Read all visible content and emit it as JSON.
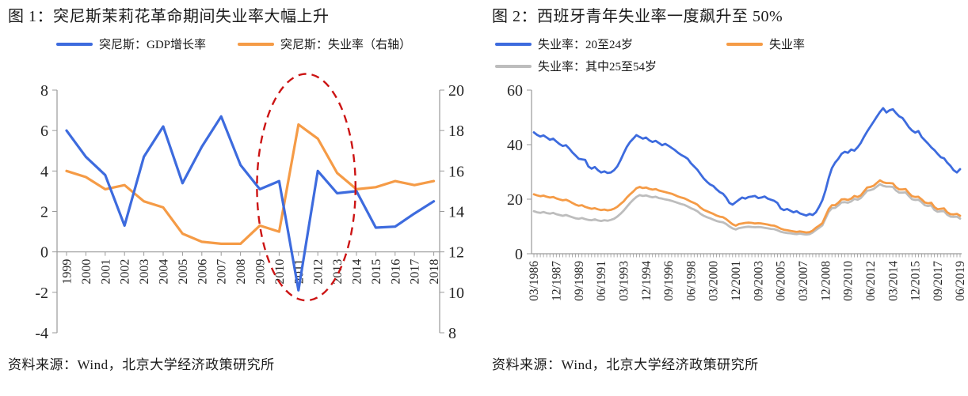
{
  "page": {
    "background": "#ffffff",
    "axis_color": "#9a9a9a",
    "text_color": "#1a1a1a"
  },
  "source_note": "资料来源：Wind，北京大学经济政策研究所",
  "chart_data": [
    {
      "id": "figure1",
      "type": "line",
      "title": "图 1：突尼斯茉莉花革命期间失业率大幅上升",
      "categories": [
        1999,
        2000,
        2001,
        2002,
        2003,
        2004,
        2005,
        2006,
        2007,
        2008,
        2009,
        2010,
        2011,
        2012,
        2013,
        2014,
        2015,
        2016,
        2017,
        2018
      ],
      "series": [
        {
          "name": "突尼斯：GDP增长率",
          "axis": "left",
          "color": "#3D6BDE",
          "values": [
            6.0,
            4.7,
            3.8,
            1.3,
            4.7,
            6.2,
            3.4,
            5.2,
            6.7,
            4.3,
            3.1,
            3.5,
            -1.9,
            4.0,
            2.9,
            3.0,
            1.2,
            1.25,
            1.9,
            2.5
          ]
        },
        {
          "name": "突尼斯：失业率（右轴）",
          "axis": "right",
          "color": "#F59B46",
          "values": [
            16.0,
            15.7,
            15.1,
            15.3,
            14.5,
            14.2,
            12.9,
            12.5,
            12.4,
            12.4,
            13.3,
            13.0,
            18.3,
            17.6,
            15.9,
            15.1,
            15.2,
            15.5,
            15.3,
            15.5
          ]
        }
      ],
      "left_axis": {
        "range": [
          -4,
          8
        ],
        "ticks": [
          8,
          6,
          4,
          2,
          0,
          -2,
          -4
        ]
      },
      "right_axis": {
        "range": [
          8,
          20
        ],
        "ticks": [
          20,
          18,
          16,
          14,
          12,
          10,
          8
        ]
      },
      "grid": false,
      "legend_position": "top",
      "annotation": {
        "shape": "dashed-ellipse",
        "color": "#CC1414",
        "x_center_year": 2011.4,
        "x_radius_years": 2.55,
        "y_center_left_axis": 3.2,
        "y_radius_left_axis": 5.6
      }
    },
    {
      "id": "figure2",
      "type": "line",
      "title": "图 2：西班牙青年失业率一度飙升至 50%",
      "x_frequency": "quarterly",
      "x_start": "1986Q1",
      "x_end": "2019Q2",
      "x_tick_indices": [
        0,
        7,
        14,
        21,
        28,
        35,
        42,
        49,
        56,
        63,
        70,
        77,
        84,
        91,
        98,
        105,
        112,
        119,
        126,
        133
      ],
      "x_tick_labels": [
        "03/1986",
        "12/1987",
        "09/1989",
        "06/1991",
        "03/1993",
        "12/1994",
        "09/1996",
        "06/1998",
        "03/2000",
        "12/2001",
        "09/2003",
        "06/2005",
        "03/2007",
        "12/2008",
        "09/2010",
        "06/2012",
        "03/2014",
        "12/2015",
        "09/2017",
        "06/2019"
      ],
      "y_axis": {
        "range": [
          0,
          60
        ],
        "ticks": [
          60,
          40,
          20,
          0
        ]
      },
      "grid": false,
      "legend_position": "top",
      "series": [
        {
          "name": "失业率：20至24岁",
          "color": "#3D6BDE",
          "values": [
            44.5,
            43.6,
            43.0,
            43.4,
            42.6,
            41.8,
            42.2,
            41.2,
            40.2,
            39.5,
            39.8,
            38.6,
            37.2,
            36.0,
            34.8,
            34.6,
            34.4,
            32.0,
            31.2,
            31.8,
            30.6,
            29.8,
            30.2,
            29.6,
            29.8,
            30.6,
            32.0,
            34.2,
            36.8,
            39.2,
            41.0,
            42.2,
            43.5,
            42.8,
            42.2,
            42.6,
            41.6,
            41.0,
            41.4,
            40.6,
            39.8,
            40.3,
            39.6,
            38.8,
            38.0,
            37.0,
            36.2,
            35.6,
            34.8,
            33.2,
            32.0,
            30.8,
            29.2,
            27.6,
            26.4,
            25.4,
            24.8,
            23.6,
            22.6,
            22.0,
            20.6,
            18.6,
            18.0,
            18.9,
            19.8,
            20.6,
            20.2,
            20.8,
            21.0,
            21.2,
            20.4,
            20.6,
            21.0,
            20.2,
            19.8,
            19.4,
            18.6,
            16.6,
            16.0,
            16.4,
            15.8,
            15.2,
            15.6,
            14.8,
            14.4,
            14.0,
            14.6,
            14.2,
            15.2,
            17.2,
            19.6,
            23.2,
            27.8,
            31.4,
            33.4,
            34.8,
            36.6,
            37.4,
            37.0,
            38.2,
            37.8,
            39.0,
            40.6,
            42.8,
            44.8,
            46.6,
            48.4,
            50.2,
            52.0,
            53.4,
            51.8,
            52.6,
            53.0,
            51.6,
            50.4,
            49.8,
            48.2,
            46.4,
            45.2,
            44.4,
            45.0,
            42.8,
            41.6,
            40.4,
            39.0,
            38.0,
            36.6,
            35.4,
            35.0,
            33.4,
            32.2,
            30.6,
            29.8,
            31.0
          ]
        },
        {
          "name": "失业率",
          "color": "#F59B46",
          "values": [
            21.8,
            21.4,
            21.1,
            21.3,
            20.9,
            20.6,
            20.8,
            20.3,
            19.9,
            19.6,
            19.8,
            19.3,
            18.6,
            18.0,
            17.6,
            17.8,
            17.2,
            16.8,
            16.5,
            16.7,
            16.3,
            16.0,
            16.2,
            15.9,
            16.1,
            16.5,
            17.2,
            18.2,
            19.2,
            20.6,
            21.8,
            22.8,
            24.0,
            24.5,
            24.1,
            24.3,
            23.8,
            23.5,
            23.7,
            23.2,
            22.9,
            22.6,
            22.3,
            22.0,
            21.5,
            21.0,
            20.6,
            20.3,
            19.7,
            19.1,
            18.6,
            18.0,
            16.9,
            16.1,
            15.6,
            15.1,
            14.6,
            14.0,
            13.6,
            13.4,
            12.7,
            11.7,
            10.8,
            10.3,
            10.9,
            11.1,
            11.3,
            11.4,
            11.3,
            11.1,
            11.2,
            11.1,
            10.9,
            10.7,
            10.4,
            10.3,
            9.8,
            9.2,
            8.8,
            8.6,
            8.4,
            8.2,
            8.0,
            8.2,
            8.0,
            7.8,
            7.9,
            8.5,
            9.5,
            10.3,
            11.2,
            13.8,
            16.4,
            17.8,
            17.8,
            18.7,
            19.9,
            20.0,
            19.7,
            20.2,
            21.2,
            20.8,
            21.4,
            22.8,
            24.3,
            24.5,
            24.9,
            25.9,
            26.9,
            26.2,
            25.9,
            25.9,
            25.8,
            24.4,
            23.6,
            23.6,
            23.7,
            22.3,
            21.1,
            20.8,
            20.9,
            19.9,
            18.8,
            18.5,
            18.7,
            17.1,
            16.3,
            16.5,
            16.6,
            15.2,
            14.5,
            14.4,
            14.6,
            13.9
          ]
        },
        {
          "name": "失业率：其中25至54岁",
          "color": "#BDBDBD",
          "values": [
            15.6,
            15.2,
            15.0,
            15.3,
            14.9,
            14.7,
            15.0,
            14.5,
            14.2,
            13.9,
            14.2,
            13.8,
            13.4,
            13.0,
            12.8,
            13.1,
            12.7,
            12.4,
            12.3,
            12.6,
            12.2,
            12.0,
            12.3,
            12.1,
            12.4,
            12.8,
            13.6,
            14.6,
            15.8,
            17.2,
            18.6,
            19.8,
            20.8,
            21.5,
            21.2,
            21.4,
            21.0,
            20.7,
            20.9,
            20.4,
            20.2,
            19.9,
            19.7,
            19.4,
            19.0,
            18.6,
            18.2,
            17.9,
            17.3,
            16.7,
            16.2,
            15.6,
            14.6,
            13.9,
            13.4,
            13.0,
            12.5,
            12.0,
            11.7,
            11.5,
            10.9,
            10.0,
            9.3,
            8.9,
            9.4,
            9.6,
            9.8,
            9.9,
            9.8,
            9.7,
            9.8,
            9.7,
            9.5,
            9.3,
            9.1,
            9.0,
            8.6,
            8.1,
            7.8,
            7.6,
            7.5,
            7.3,
            7.2,
            7.4,
            7.2,
            7.0,
            7.2,
            7.8,
            8.7,
            9.5,
            10.4,
            12.9,
            15.4,
            16.7,
            16.8,
            17.7,
            18.8,
            18.9,
            18.7,
            19.2,
            20.1,
            19.8,
            20.4,
            21.7,
            23.1,
            23.3,
            23.7,
            24.6,
            25.5,
            24.9,
            24.6,
            24.6,
            24.5,
            23.2,
            22.4,
            22.4,
            22.5,
            21.2,
            20.0,
            19.7,
            19.8,
            18.9,
            17.8,
            17.5,
            17.7,
            16.1,
            15.4,
            15.6,
            15.6,
            14.3,
            13.6,
            13.5,
            13.6,
            12.9
          ]
        }
      ]
    }
  ]
}
